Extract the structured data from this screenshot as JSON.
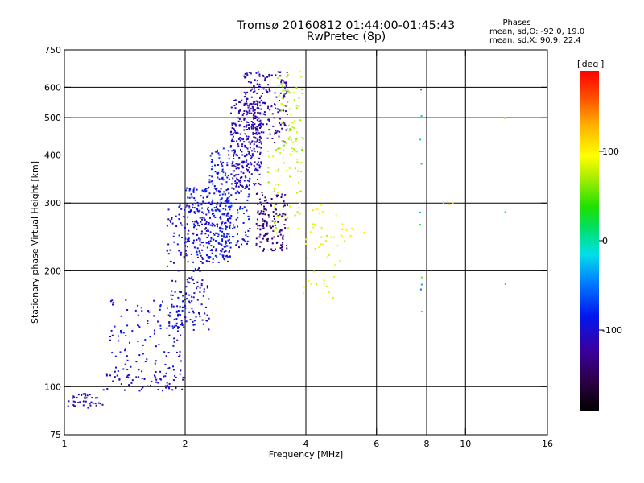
{
  "header": {
    "title_line1": "Tromsø 20160812 01:44:00-01:45:43",
    "title_line2": "RwPretec (8p)",
    "phases_title": "Phases",
    "phases_o": "mean, sd,O: -92.0, 19.0",
    "phases_x": "mean, sd,X:  90.9, 22.4"
  },
  "colorbar": {
    "label": "deg",
    "range": [
      -190,
      190
    ],
    "ticks": [
      {
        "value": 100,
        "label": "100"
      },
      {
        "value": 0,
        "label": "0"
      },
      {
        "value": -100,
        "label": "-100"
      }
    ]
  },
  "chart_data": {
    "type": "scatter",
    "xlabel": "Frequency [MHz]",
    "ylabel": "Stationary phase Virtual Height [km]",
    "x_scale": "log2",
    "y_scale": "log",
    "xlim": [
      1,
      16
    ],
    "ylim": [
      75,
      750
    ],
    "x_ticks": [
      1,
      2,
      4,
      6,
      8,
      10,
      16
    ],
    "x_tick_labels": [
      "1",
      "2",
      "4",
      "6",
      "8",
      "10",
      "16"
    ],
    "y_ticks": [
      75,
      100,
      200,
      300,
      400,
      500,
      600,
      750
    ],
    "y_tick_labels": [
      "75",
      "100",
      "200",
      "300",
      "400",
      "500",
      "600",
      "750"
    ],
    "grid_x": [
      2,
      4,
      6,
      8,
      10
    ],
    "grid_y": [
      100,
      200,
      300,
      400,
      500,
      600
    ],
    "color_encoding": "phase (deg)",
    "clusters": [
      {
        "x": [
          1.0,
          1.25
        ],
        "y": [
          88,
          96
        ],
        "phase": -110,
        "phase_sd": 10,
        "n": 40
      },
      {
        "x": [
          1.25,
          2.0
        ],
        "y": [
          97,
          108
        ],
        "phase": -105,
        "phase_sd": 15,
        "n": 55
      },
      {
        "x": [
          1.3,
          2.0
        ],
        "y": [
          105,
          170
        ],
        "phase": -95,
        "phase_sd": 25,
        "n": 120
      },
      {
        "x": [
          1.8,
          2.3
        ],
        "y": [
          140,
          300
        ],
        "phase": -100,
        "phase_sd": 30,
        "n": 200
      },
      {
        "x": [
          2.0,
          2.6
        ],
        "y": [
          210,
          330
        ],
        "phase": -95,
        "phase_sd": 35,
        "n": 220
      },
      {
        "x": [
          2.3,
          2.9
        ],
        "y": [
          230,
          420
        ],
        "phase": -90,
        "phase_sd": 40,
        "n": 230
      },
      {
        "x": [
          2.6,
          3.1
        ],
        "y": [
          330,
          560
        ],
        "phase": -110,
        "phase_sd": 25,
        "n": 250
      },
      {
        "x": [
          2.8,
          3.6
        ],
        "y": [
          430,
          660
        ],
        "phase": -115,
        "phase_sd": 30,
        "n": 200
      },
      {
        "x": [
          3.0,
          3.6
        ],
        "y": [
          225,
          320
        ],
        "phase": -135,
        "phase_sd": 20,
        "n": 140
      },
      {
        "x": [
          3.4,
          3.95
        ],
        "y": [
          360,
          660
        ],
        "phase": 70,
        "phase_sd": 30,
        "n": 70
      },
      {
        "x": [
          3.2,
          3.9
        ],
        "y": [
          250,
          420
        ],
        "phase": 80,
        "phase_sd": 35,
        "n": 50
      },
      {
        "x": [
          3.9,
          5.0
        ],
        "y": [
          170,
          300
        ],
        "phase": 90,
        "phase_sd": 35,
        "n": 45
      },
      {
        "x": [
          4.8,
          5.6
        ],
        "y": [
          245,
          265
        ],
        "phase": 100,
        "phase_sd": 10,
        "n": 10
      },
      {
        "x": [
          7.7,
          7.8
        ],
        "y": [
          150,
          600
        ],
        "phase": -10,
        "phase_sd": 80,
        "n": 10
      },
      {
        "x": [
          8.8,
          9.4
        ],
        "y": [
          292,
          302
        ],
        "phase": 120,
        "phase_sd": 5,
        "n": 5
      },
      {
        "x": [
          12.4,
          12.6
        ],
        "y": [
          170,
          520
        ],
        "phase": 20,
        "phase_sd": 40,
        "n": 3
      }
    ]
  }
}
